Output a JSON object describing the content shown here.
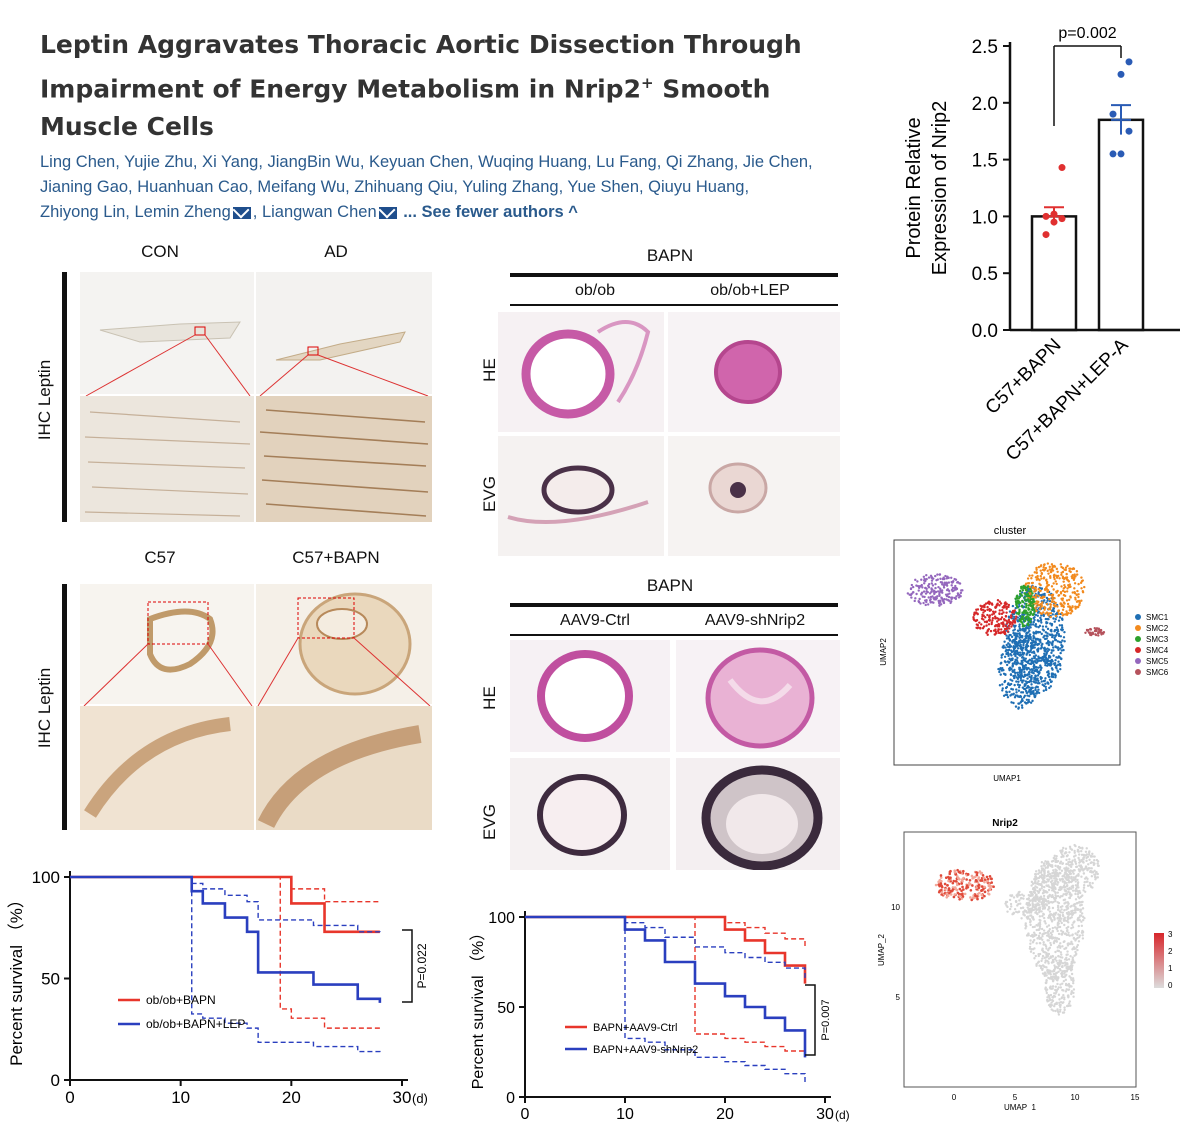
{
  "paper": {
    "title_main": "Leptin Aggravates Thoracic Aortic Dissection Through Impairment of Energy Metabolism in Nrip2",
    "title_sup": "+",
    "title_tail": " Smooth Muscle Cells",
    "authors_line1": "Ling Chen, Yujie Zhu, Xi Yang, JiangBin Wu, Keyuan Chen, Wuqing Huang, Lu Fang, Qi Zhang, Jie Chen,",
    "authors_line2": "Jianing Gao, Huanhuan Cao, Meifang Wu, Zhihuang Qiu, Yuling Zhang, Yue Shen, Qiuyu Huang,",
    "authors_line3a": "Zhiyong Lin, Lemin Zheng",
    "authors_line3b": ", Liangwan Chen",
    "see_fewer": "... See fewer authors ^"
  },
  "ihc_top": {
    "col1": "CON",
    "col2": "AD",
    "side": "IHC Leptin"
  },
  "ihc_bottom": {
    "col1": "C57",
    "col2": "C57+BAPN",
    "side": "IHC Leptin"
  },
  "he_top": {
    "group": "BAPN",
    "col1": "ob/ob",
    "col2": "ob/ob+LEP",
    "row1": "HE",
    "row2": "EVG"
  },
  "he_bottom": {
    "group": "BAPN",
    "col1": "AAV9-Ctrl",
    "col2": "AAV9-shNrip2",
    "row1": "HE",
    "row2": "EVG"
  },
  "colors": {
    "red": "#e8362b",
    "blue": "#2a3fbf",
    "smc1": "#1f6fb4",
    "smc2": "#f28a1e",
    "smc3": "#2ca02c",
    "smc4": "#d62728",
    "smc5": "#9467bd",
    "smc6": "#b5525c"
  },
  "chart_data": [
    {
      "type": "bar",
      "categories": [
        "C57+BAPN",
        "C57+BAPN+LEP-A"
      ],
      "values": [
        1.0,
        1.85
      ],
      "errors": [
        0.08,
        0.13
      ],
      "points": [
        [
          0.84,
          0.95,
          0.98,
          1.0,
          1.02,
          1.43
        ],
        [
          1.55,
          1.55,
          1.75,
          1.9,
          2.25,
          2.36
        ]
      ],
      "ylabel": "Protein Relative Expression of Nrip2",
      "yticks": [
        "0.0",
        "0.5",
        "1.0",
        "1.5",
        "2.0",
        "2.5"
      ],
      "ylim": [
        0,
        2.5
      ],
      "annotation": "p=0.002"
    },
    {
      "type": "line",
      "title": "",
      "ylabel": "Percent survival （%）",
      "xlabel_unit": "(d)",
      "xticks": [
        "0",
        "10",
        "20",
        "30"
      ],
      "yticks": [
        "0",
        "50",
        "100"
      ],
      "xlim": [
        0,
        30
      ],
      "ylim": [
        0,
        100
      ],
      "annotation": "P=0.022",
      "series": [
        {
          "name": "ob/ob+BAPN",
          "color": "red",
          "x": [
            0,
            19,
            20,
            23,
            28
          ],
          "y": [
            100,
            100,
            87,
            73,
            73
          ]
        },
        {
          "name": "ob/ob+BAPN+LEP",
          "color": "blue",
          "x": [
            0,
            11,
            12,
            14,
            16,
            17,
            22,
            26,
            28
          ],
          "y": [
            100,
            93,
            87,
            80,
            73,
            53,
            47,
            40,
            38
          ]
        }
      ]
    },
    {
      "type": "line",
      "ylabel": "Percent survival （%）",
      "xlabel_unit": "(d)",
      "xticks": [
        "0",
        "10",
        "20",
        "30"
      ],
      "yticks": [
        "0",
        "50",
        "100"
      ],
      "xlim": [
        0,
        30
      ],
      "ylim": [
        0,
        100
      ],
      "annotation": "P=0.007",
      "series": [
        {
          "name": "BAPN+AAV9-Ctrl",
          "color": "red",
          "x": [
            0,
            17,
            20,
            22,
            24,
            26,
            28
          ],
          "y": [
            100,
            100,
            93,
            87,
            80,
            73,
            63
          ]
        },
        {
          "name": "BAPN+AAV9-shNrip2",
          "color": "blue",
          "x": [
            0,
            10,
            12,
            14,
            17,
            20,
            22,
            24,
            26,
            28
          ],
          "y": [
            100,
            93,
            87,
            75,
            63,
            56,
            50,
            44,
            37,
            22
          ]
        }
      ]
    },
    {
      "type": "scatter",
      "title": "cluster",
      "xlabel": "UMAP1",
      "ylabel": "UMAP2",
      "legend": [
        "SMC1",
        "SMC2",
        "SMC3",
        "SMC4",
        "SMC5",
        "SMC6"
      ]
    },
    {
      "type": "scatter",
      "title": "Nrip2",
      "xlabel": "UMAP_1",
      "ylabel": "UMAP_2",
      "xticks": [
        "0",
        "5",
        "10",
        "15"
      ],
      "yticks": [
        "5",
        "10"
      ],
      "colorbar": [
        "0",
        "1",
        "2",
        "3"
      ]
    }
  ]
}
